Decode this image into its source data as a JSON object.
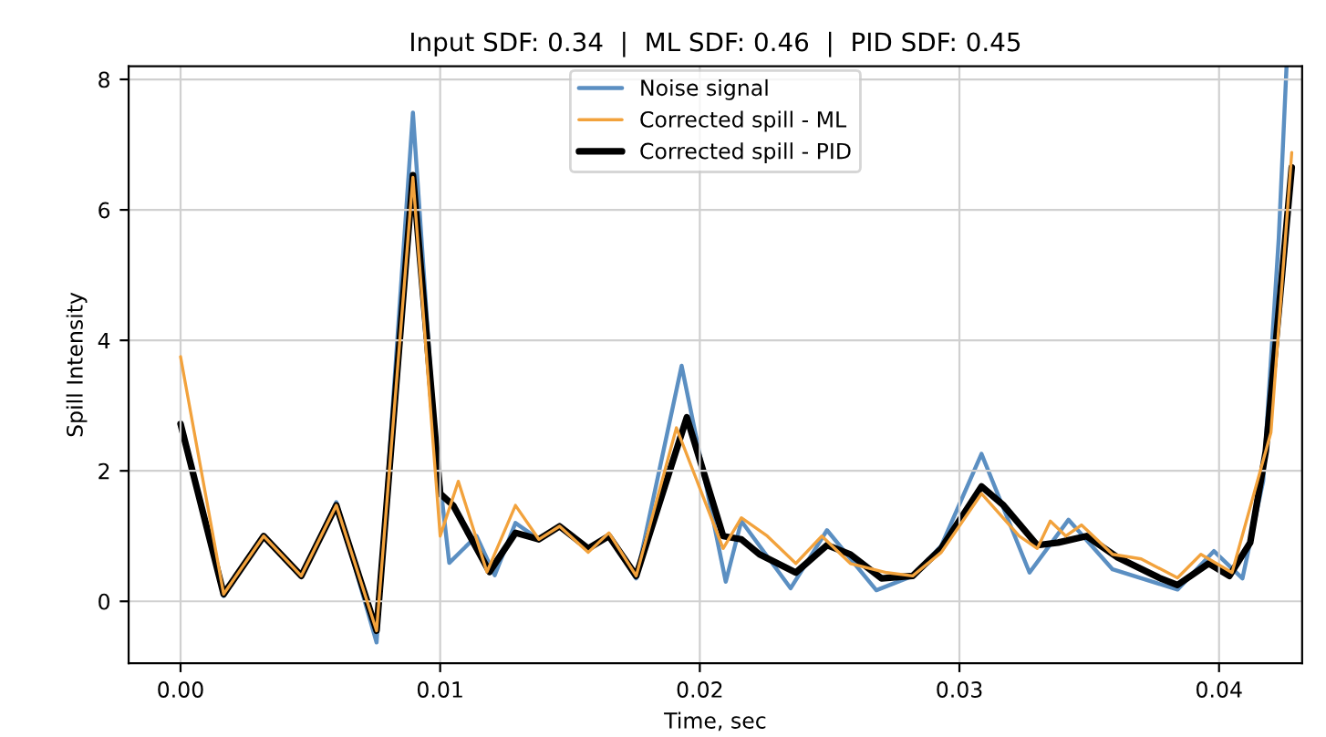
{
  "chart_data": {
    "type": "line",
    "title": "Input SDF: 0.34  |  ML SDF: 0.46  |  PID SDF: 0.45",
    "xlabel": "Time, sec",
    "ylabel": "Spill Intensity",
    "xlim": [
      -0.002,
      0.0432
    ],
    "ylim": [
      -0.95,
      8.2
    ],
    "xticks": [
      {
        "value": 0,
        "label": "0.00"
      },
      {
        "value": 0.01,
        "label": "0.01"
      },
      {
        "value": 0.02,
        "label": "0.02"
      },
      {
        "value": 0.03,
        "label": "0.03"
      },
      {
        "value": 0.04,
        "label": "0.04"
      }
    ],
    "yticks": [
      0,
      2,
      4,
      6,
      8
    ],
    "grid": true,
    "legend": "top",
    "line_style": "solid",
    "marker": "none",
    "series": [
      {
        "name": "Noise signal",
        "color": "#5b8fc2",
        "x": [
          0,
          0.00166,
          0.0032,
          0.00465,
          0.006,
          0.00755,
          0.00895,
          0.0098,
          0.01035,
          0.0114,
          0.0121,
          0.0129,
          0.0138,
          0.0146,
          0.0157,
          0.0165,
          0.01755,
          0.0193,
          0.021,
          0.0216,
          0.0235,
          0.0249,
          0.0268,
          0.0282,
          0.0293,
          0.03085,
          0.0327,
          0.0342,
          0.0359,
          0.0384,
          0.0398,
          0.0409,
          0.0417,
          0.0423,
          0.0426
        ],
        "values": [
          2.72,
          0.08,
          1.0,
          0.39,
          1.52,
          -0.63,
          7.49,
          2.5,
          0.59,
          1.0,
          0.4,
          1.2,
          0.95,
          1.15,
          0.78,
          1.0,
          0.35,
          3.61,
          0.3,
          1.23,
          0.2,
          1.09,
          0.17,
          0.39,
          0.85,
          2.26,
          0.44,
          1.25,
          0.49,
          0.18,
          0.77,
          0.35,
          1.84,
          5.57,
          8.2
        ]
      },
      {
        "name": "Corrected spill - ML",
        "color": "#f2a23c",
        "x": [
          0,
          0.00166,
          0.0032,
          0.00465,
          0.006,
          0.00755,
          0.00895,
          0.01,
          0.0107,
          0.0118,
          0.0129,
          0.0138,
          0.0146,
          0.0157,
          0.0165,
          0.01755,
          0.0191,
          0.0209,
          0.0216,
          0.0226,
          0.0237,
          0.0247,
          0.0258,
          0.0272,
          0.0282,
          0.0293,
          0.03085,
          0.0323,
          0.033,
          0.0335,
          0.0341,
          0.0347,
          0.0359,
          0.037,
          0.0384,
          0.0393,
          0.0405,
          0.042,
          0.0428
        ],
        "values": [
          3.75,
          0.11,
          1.0,
          0.39,
          1.47,
          -0.45,
          6.5,
          1.0,
          1.84,
          0.45,
          1.47,
          0.95,
          1.15,
          0.75,
          1.05,
          0.39,
          2.66,
          0.81,
          1.28,
          1.0,
          0.58,
          1.0,
          0.58,
          0.44,
          0.39,
          0.75,
          1.65,
          1.0,
          0.81,
          1.23,
          1.0,
          1.17,
          0.72,
          0.65,
          0.36,
          0.72,
          0.44,
          2.59,
          6.88
        ]
      },
      {
        "name": "Corrected spill - PID",
        "color": "#000000",
        "x": [
          0,
          0.00166,
          0.0032,
          0.00465,
          0.006,
          0.00755,
          0.00895,
          0.01,
          0.0105,
          0.0119,
          0.0129,
          0.0138,
          0.0146,
          0.0157,
          0.0165,
          0.01755,
          0.0195,
          0.0209,
          0.0216,
          0.0223,
          0.0237,
          0.0249,
          0.0258,
          0.027,
          0.0282,
          0.0293,
          0.03085,
          0.0317,
          0.033,
          0.0338,
          0.0349,
          0.0361,
          0.0377,
          0.0384,
          0.0396,
          0.0404,
          0.0412,
          0.0418,
          0.0423,
          0.0428
        ],
        "values": [
          2.72,
          0.11,
          1.0,
          0.39,
          1.47,
          -0.45,
          6.53,
          1.65,
          1.47,
          0.45,
          1.05,
          0.95,
          1.15,
          0.81,
          1.0,
          0.39,
          2.82,
          1.0,
          0.95,
          0.72,
          0.44,
          0.86,
          0.72,
          0.35,
          0.39,
          0.81,
          1.76,
          1.47,
          0.86,
          0.9,
          1.0,
          0.67,
          0.36,
          0.25,
          0.58,
          0.39,
          0.9,
          2.3,
          4.45,
          6.65
        ]
      }
    ]
  }
}
